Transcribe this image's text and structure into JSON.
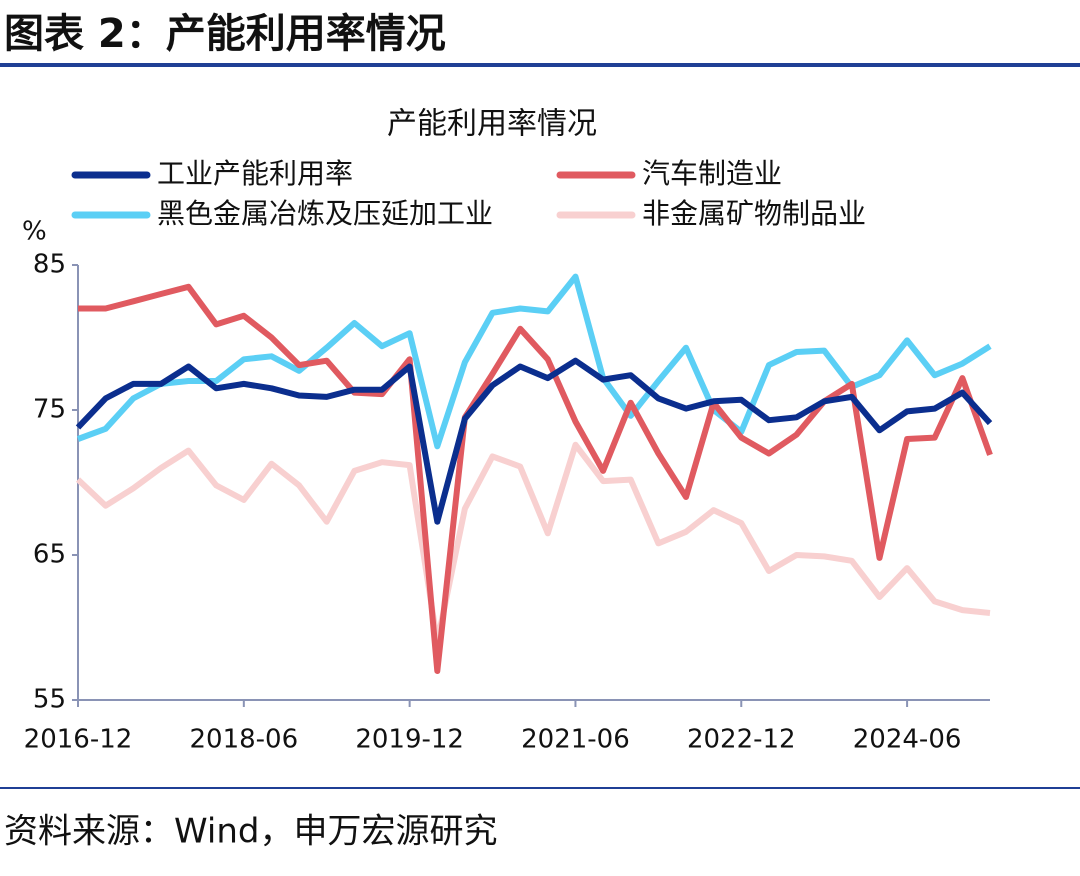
{
  "header": {
    "title": "图表 2：产能利用率情况"
  },
  "footer": {
    "source": "资料来源：Wind，申万宏源研究"
  },
  "chart_data": {
    "type": "line",
    "title": "产能利用率情况",
    "y_unit": "%",
    "categories": [
      "2016-12",
      null,
      null,
      null,
      null,
      null,
      "2018-06",
      null,
      null,
      null,
      null,
      null,
      "2019-12",
      null,
      null,
      null,
      null,
      null,
      "2021-06",
      null,
      null,
      null,
      null,
      null,
      "2022-12",
      null,
      null,
      null,
      null,
      null,
      "2024-06",
      null,
      null,
      null
    ],
    "ylim": [
      55,
      85
    ],
    "yticks": [
      55,
      65,
      75,
      85
    ],
    "series": [
      {
        "name": "工业产能利用率",
        "color": "#0b2e8e",
        "values": [
          73.8,
          75.8,
          76.8,
          76.8,
          78.0,
          76.5,
          76.8,
          76.5,
          76.0,
          75.9,
          76.4,
          76.4,
          78.0,
          67.3,
          74.4,
          76.7,
          78.0,
          77.2,
          78.4,
          77.1,
          77.4,
          75.8,
          75.1,
          75.6,
          75.7,
          74.3,
          74.5,
          75.6,
          75.9,
          73.6,
          74.9,
          75.1,
          76.2,
          74.1
        ]
      },
      {
        "name": "汽车制造业",
        "color": "#e05a60",
        "values": [
          82,
          82,
          82.5,
          83,
          83.5,
          80.9,
          81.5,
          80,
          78.1,
          78.4,
          76.2,
          76.1,
          78.5,
          57,
          74.5,
          77.5,
          80.6,
          78.5,
          74.2,
          70.8,
          75.5,
          72,
          69,
          75.5,
          73.1,
          72,
          73.3,
          75.6,
          76.8,
          64.8,
          73,
          73.1,
          77.2,
          71.9
        ]
      },
      {
        "name": "黑色金属冶炼及压延加工业",
        "color": "#5bcff5",
        "values": [
          73,
          73.7,
          75.8,
          76.8,
          77,
          77,
          78.5,
          78.7,
          77.7,
          79.3,
          81.0,
          79.4,
          80.3,
          72.5,
          78.3,
          81.7,
          82,
          81.8,
          84.2,
          77.2,
          74.6,
          77,
          79.3,
          75.0,
          73.5,
          78.1,
          79,
          79.1,
          76.6,
          77.4,
          79.8,
          77.4,
          78.2,
          79.4
        ]
      },
      {
        "name": "非金属矿物制品业",
        "color": "#f8d0d0",
        "values": [
          70.2,
          68.4,
          69.6,
          71,
          72.2,
          69.8,
          68.8,
          71.3,
          69.8,
          67.3,
          70.8,
          71.4,
          71.2,
          59,
          68.2,
          71.8,
          71.1,
          66.5,
          72.6,
          70.1,
          70.2,
          65.8,
          66.6,
          68.1,
          67.2,
          63.9,
          65,
          64.9,
          64.6,
          62.1,
          64.1,
          61.8,
          61.2,
          61
        ]
      }
    ]
  }
}
